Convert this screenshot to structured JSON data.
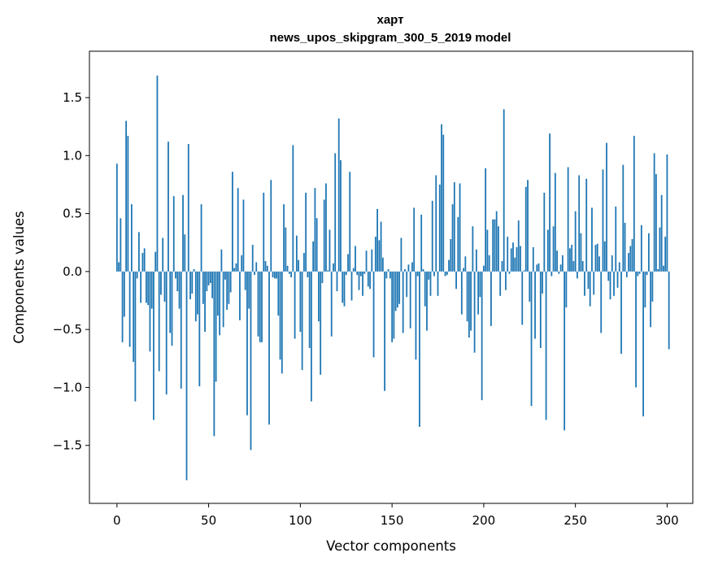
{
  "chart_data": {
    "type": "bar",
    "title": "харт",
    "subtitle": "news_upos_skipgram_300_5_2019 model",
    "xlabel": "Vector components",
    "ylabel": "Components values",
    "xlim": [
      -15,
      314
    ],
    "ylim": [
      -2.0,
      1.9
    ],
    "xticks": [
      0,
      50,
      100,
      150,
      200,
      250,
      300
    ],
    "yticks": [
      -1.5,
      -1.0,
      -0.5,
      0.0,
      0.5,
      1.0,
      1.5
    ],
    "ytick_labels": [
      "−1.5",
      "−1.0",
      "−0.5",
      "0.0",
      "0.5",
      "1.0",
      "1.5"
    ],
    "bar_color": "#1f77b4",
    "grid": false,
    "values": [
      0.93,
      0.08,
      0.46,
      -0.61,
      -0.39,
      1.3,
      1.17,
      -0.65,
      0.58,
      -0.78,
      -1.12,
      -0.06,
      0.34,
      -0.27,
      0.16,
      0.2,
      -0.27,
      -0.29,
      -0.69,
      -0.32,
      -1.28,
      0.17,
      1.69,
      -0.86,
      -0.2,
      0.29,
      -0.26,
      -1.06,
      1.12,
      -0.53,
      -0.64,
      0.65,
      -0.06,
      -0.17,
      -0.32,
      -1.01,
      0.66,
      0.32,
      -1.8,
      1.1,
      -0.24,
      -0.19,
      0.02,
      -0.43,
      -0.37,
      -0.99,
      0.58,
      -0.28,
      -0.52,
      -0.17,
      -0.12,
      -0.1,
      -0.23,
      -1.42,
      -0.95,
      -0.38,
      -0.55,
      0.19,
      -0.48,
      -0.07,
      -0.33,
      -0.28,
      -0.18,
      0.86,
      0.03,
      0.07,
      0.72,
      -0.42,
      0.14,
      0.62,
      -0.16,
      -1.24,
      -0.32,
      -1.54,
      0.23,
      -0.03,
      0.08,
      -0.56,
      -0.61,
      -0.61,
      0.68,
      0.09,
      0.05,
      -1.32,
      0.79,
      -0.05,
      -0.06,
      -0.06,
      -0.38,
      -0.76,
      -0.88,
      0.58,
      0.38,
      0.05,
      -0.02,
      -0.05,
      1.09,
      -0.58,
      0.31,
      0.1,
      -0.52,
      -0.85,
      0.16,
      0.68,
      -0.05,
      -0.66,
      -1.12,
      0.26,
      0.72,
      0.46,
      -0.43,
      -0.89,
      -0.1,
      0.62,
      0.76,
      0.01,
      0.36,
      -0.56,
      0.07,
      1.02,
      -0.17,
      1.32,
      0.96,
      -0.27,
      -0.3,
      -0.03,
      0.15,
      0.86,
      -0.25,
      0.03,
      0.22,
      -0.03,
      -0.16,
      -0.04,
      -0.21,
      -0.02,
      0.18,
      -0.13,
      -0.15,
      0.19,
      -0.74,
      0.3,
      0.54,
      0.27,
      0.43,
      0.12,
      -1.03,
      -0.06,
      0.02,
      -0.06,
      -0.61,
      -0.58,
      -0.34,
      -0.31,
      -0.28,
      0.29,
      -0.53,
      0.02,
      -0.22,
      0.06,
      -0.49,
      0.08,
      0.55,
      -0.76,
      -0.04,
      -1.34,
      0.49,
      0.02,
      -0.3,
      -0.51,
      -0.07,
      -0.21,
      0.61,
      -0.04,
      0.83,
      -0.21,
      0.75,
      1.27,
      1.18,
      -0.04,
      -0.03,
      0.1,
      0.28,
      0.58,
      0.77,
      -0.15,
      0.47,
      0.76,
      -0.37,
      0.03,
      0.13,
      -0.43,
      -0.57,
      -0.51,
      0.39,
      -0.7,
      0.19,
      -0.37,
      -0.22,
      -1.11,
      0.05,
      0.89,
      0.36,
      0.14,
      -0.47,
      0.45,
      0.45,
      0.52,
      0.39,
      -0.21,
      0.09,
      1.4,
      -0.16,
      0.3,
      -0.02,
      0.2,
      0.25,
      0.12,
      0.21,
      0.44,
      0.22,
      -0.46,
      0.01,
      0.73,
      0.79,
      -0.26,
      -1.16,
      0.21,
      -0.58,
      0.06,
      0.07,
      -0.66,
      -0.19,
      0.68,
      -1.28,
      0.36,
      1.19,
      -0.04,
      0.39,
      0.85,
      0.18,
      -0.02,
      0.06,
      0.14,
      -1.37,
      -0.31,
      0.9,
      0.2,
      0.23,
      0.09,
      0.52,
      -0.06,
      0.83,
      0.33,
      0.09,
      -0.21,
      0.8,
      -0.15,
      -0.3,
      0.55,
      -0.2,
      0.23,
      0.24,
      0.13,
      -0.53,
      0.88,
      0.26,
      1.11,
      -0.08,
      -0.24,
      0.14,
      -0.21,
      0.56,
      -0.14,
      0.08,
      -0.71,
      0.92,
      0.42,
      -0.05,
      0.16,
      0.22,
      0.28,
      1.17,
      -1.0,
      -0.04,
      -0.02,
      0.4,
      -1.25,
      -0.31,
      -0.03,
      0.33,
      -0.48,
      -0.26,
      1.02,
      0.84,
      0.02,
      0.38,
      0.66,
      0.05,
      0.3,
      1.01,
      -0.67
    ]
  }
}
